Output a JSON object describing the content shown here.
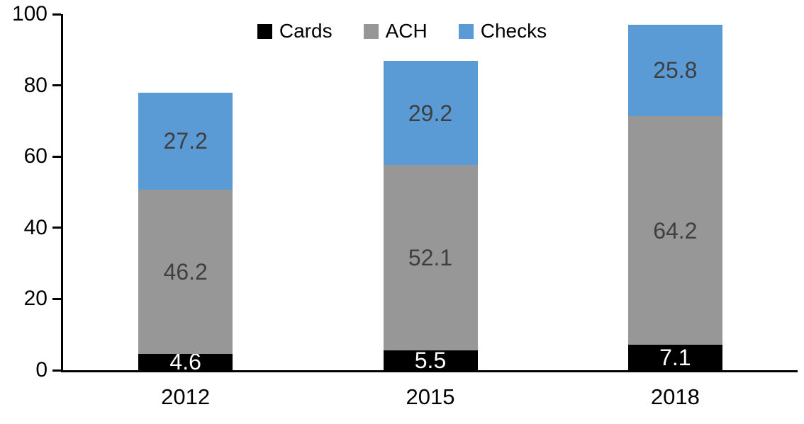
{
  "chart_data": {
    "type": "bar",
    "stacked": true,
    "title": "",
    "categories": [
      "2012",
      "2015",
      "2018"
    ],
    "series": [
      {
        "name": "Cards",
        "values": [
          4.6,
          5.5,
          7.1
        ],
        "color": "#000000",
        "label_color": "#ffffff"
      },
      {
        "name": "ACH",
        "values": [
          46.2,
          52.1,
          64.2
        ],
        "color": "#979797",
        "label_color": "#3f3f3f"
      },
      {
        "name": "Checks",
        "values": [
          27.2,
          29.2,
          25.8
        ],
        "color": "#5b9bd5",
        "label_color": "#3f3f3f"
      }
    ],
    "totals": [
      78.0,
      86.8,
      97.1
    ],
    "y_axis": {
      "min": 0,
      "max": 100,
      "tick_step": 20,
      "ticks": [
        0,
        20,
        40,
        60,
        80,
        100
      ]
    },
    "xlabel": "",
    "ylabel": "",
    "legend_position": "top-center",
    "grid": false,
    "background_color": "#ffffff",
    "axis_color": "#000000"
  }
}
